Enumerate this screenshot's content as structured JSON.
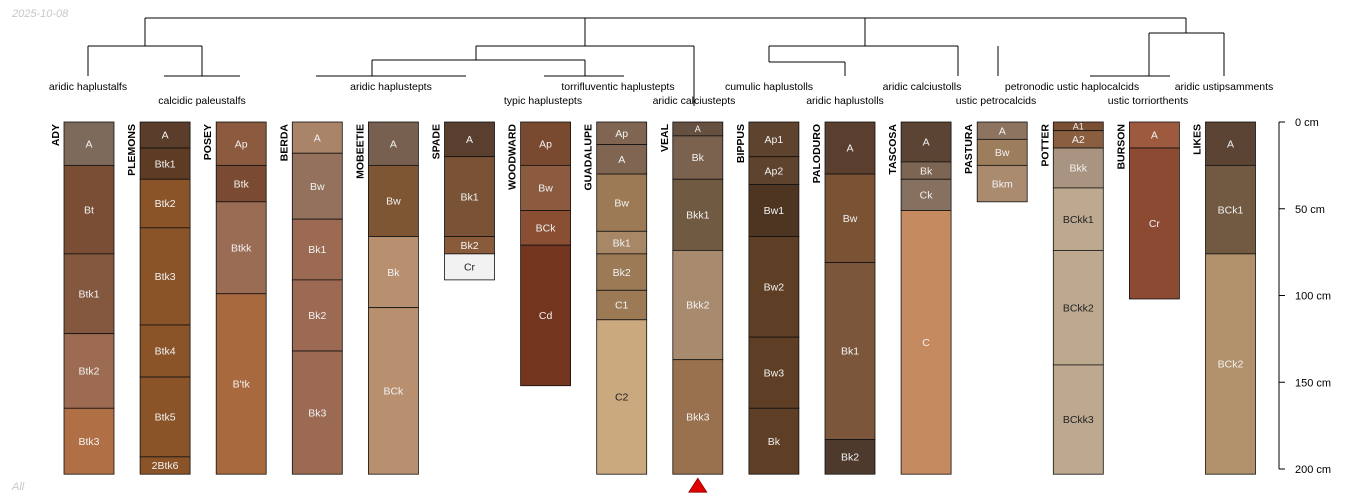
{
  "date_stamp": "2025-10-08",
  "footer_mark": "All",
  "chart_data": {
    "type": "soil-profile-sketch",
    "title": "",
    "depth_unit": "cm",
    "depth_range": [
      0,
      200
    ],
    "depth_ticks": [
      {
        "value": 0,
        "label": "0 cm"
      },
      {
        "value": 50,
        "label": "50 cm"
      },
      {
        "value": 100,
        "label": "100 cm"
      },
      {
        "value": 150,
        "label": "150 cm"
      },
      {
        "value": 200,
        "label": "200 cm"
      }
    ],
    "taxonomic_labels": [
      {
        "text": "aridic haplustalfs"
      },
      {
        "text": "calcidic paleustalfs"
      },
      {
        "text": "aridic haplustepts"
      },
      {
        "text": "torrifluventic haplustepts"
      },
      {
        "text": "typic haplustepts"
      },
      {
        "text": "aridic calciustepts"
      },
      {
        "text": "cumulic haplustolls"
      },
      {
        "text": "aridic haplustolls"
      },
      {
        "text": "aridic calciustolls"
      },
      {
        "text": "ustic petrocalcids"
      },
      {
        "text": "petronodic ustic haplocalcids"
      },
      {
        "text": "ustic torriorthents"
      },
      {
        "text": "aridic ustipsamments"
      }
    ],
    "marker": {
      "profile": "VEAL",
      "shape": "triangle",
      "color": "#e00000"
    },
    "profiles": [
      {
        "name": "ADY",
        "horizons": [
          {
            "name": "A",
            "top": 0,
            "bottom": 25,
            "color": "#7d6a5a"
          },
          {
            "name": "Bt",
            "top": 25,
            "bottom": 76,
            "color": "#7a4e35"
          },
          {
            "name": "Btk1",
            "top": 76,
            "bottom": 122,
            "color": "#84573f"
          },
          {
            "name": "Btk2",
            "top": 122,
            "bottom": 165,
            "color": "#9d6b52"
          },
          {
            "name": "Btk3",
            "top": 165,
            "bottom": 203,
            "color": "#b06f44"
          }
        ]
      },
      {
        "name": "PLEMONS",
        "horizons": [
          {
            "name": "A",
            "top": 0,
            "bottom": 15,
            "color": "#5a3d2b"
          },
          {
            "name": "Btk1",
            "top": 15,
            "bottom": 33,
            "color": "#5e3b23"
          },
          {
            "name": "Btk2",
            "top": 33,
            "bottom": 61,
            "color": "#8a5428"
          },
          {
            "name": "Btk3",
            "top": 61,
            "bottom": 117,
            "color": "#8a5428"
          },
          {
            "name": "Btk4",
            "top": 117,
            "bottom": 147,
            "color": "#8a5428"
          },
          {
            "name": "Btk5",
            "top": 147,
            "bottom": 193,
            "color": "#8a5428"
          },
          {
            "name": "2Btk6",
            "top": 193,
            "bottom": 203,
            "color": "#8a5428"
          }
        ]
      },
      {
        "name": "POSEY",
        "horizons": [
          {
            "name": "Ap",
            "top": 0,
            "bottom": 25,
            "color": "#8c5a3f"
          },
          {
            "name": "Btk",
            "top": 25,
            "bottom": 46,
            "color": "#7a4a33"
          },
          {
            "name": "Btkk",
            "top": 46,
            "bottom": 99,
            "color": "#9b6c54"
          },
          {
            "name": "B'tk",
            "top": 99,
            "bottom": 203,
            "color": "#a9693f"
          }
        ]
      },
      {
        "name": "BERDA",
        "horizons": [
          {
            "name": "A",
            "top": 0,
            "bottom": 18,
            "color": "#a98468"
          },
          {
            "name": "Bw",
            "top": 18,
            "bottom": 56,
            "color": "#93715c"
          },
          {
            "name": "Bk1",
            "top": 56,
            "bottom": 91,
            "color": "#9c6a53"
          },
          {
            "name": "Bk2",
            "top": 91,
            "bottom": 132,
            "color": "#9c6a53"
          },
          {
            "name": "Bk3",
            "top": 132,
            "bottom": 203,
            "color": "#9c6a53"
          }
        ]
      },
      {
        "name": "MOBEETIE",
        "horizons": [
          {
            "name": "A",
            "top": 0,
            "bottom": 25,
            "color": "#77604f"
          },
          {
            "name": "Bw",
            "top": 25,
            "bottom": 66,
            "color": "#7e5634"
          },
          {
            "name": "Bk",
            "top": 66,
            "bottom": 107,
            "color": "#b88f6f"
          },
          {
            "name": "BCk",
            "top": 107,
            "bottom": 203,
            "color": "#b88f6f"
          }
        ]
      },
      {
        "name": "SPADE",
        "horizons": [
          {
            "name": "A",
            "top": 0,
            "bottom": 20,
            "color": "#5b3f2e"
          },
          {
            "name": "Bk1",
            "top": 20,
            "bottom": 66,
            "color": "#7a5336"
          },
          {
            "name": "Bk2",
            "top": 66,
            "bottom": 76,
            "color": "#8a5b3b"
          },
          {
            "name": "Cr",
            "top": 76,
            "bottom": 91,
            "color": "#f2f2f2"
          }
        ]
      },
      {
        "name": "WOODWARD",
        "horizons": [
          {
            "name": "Ap",
            "top": 0,
            "bottom": 25,
            "color": "#7a4a30"
          },
          {
            "name": "Bw",
            "top": 25,
            "bottom": 51,
            "color": "#8c5a3f"
          },
          {
            "name": "BCk",
            "top": 51,
            "bottom": 71,
            "color": "#8a4e33"
          },
          {
            "name": "Cd",
            "top": 71,
            "bottom": 152,
            "color": "#74351f"
          }
        ]
      },
      {
        "name": "GUADALUPE",
        "horizons": [
          {
            "name": "Ap",
            "top": 0,
            "bottom": 13,
            "color": "#806652"
          },
          {
            "name": "A",
            "top": 13,
            "bottom": 30,
            "color": "#806652"
          },
          {
            "name": "Bw",
            "top": 30,
            "bottom": 63,
            "color": "#9c7a55"
          },
          {
            "name": "Bk1",
            "top": 63,
            "bottom": 76,
            "color": "#a78766"
          },
          {
            "name": "Bk2",
            "top": 76,
            "bottom": 97,
            "color": "#9c7a55"
          },
          {
            "name": "C1",
            "top": 97,
            "bottom": 114,
            "color": "#9c7a55"
          },
          {
            "name": "C2",
            "top": 114,
            "bottom": 203,
            "color": "#caa97f"
          }
        ]
      },
      {
        "name": "VEAL",
        "horizons": [
          {
            "name": "A",
            "top": 0,
            "bottom": 8,
            "color": "#66503f"
          },
          {
            "name": "Bk",
            "top": 8,
            "bottom": 33,
            "color": "#7b624f"
          },
          {
            "name": "Bkk1",
            "top": 33,
            "bottom": 74,
            "color": "#715a42"
          },
          {
            "name": "Bkk2",
            "top": 74,
            "bottom": 137,
            "color": "#a88b6f"
          },
          {
            "name": "Bkk3",
            "top": 137,
            "bottom": 203,
            "color": "#9a714f"
          }
        ]
      },
      {
        "name": "BIPPUS",
        "horizons": [
          {
            "name": "Ap1",
            "top": 0,
            "bottom": 20,
            "color": "#5e432e"
          },
          {
            "name": "Ap2",
            "top": 20,
            "bottom": 36,
            "color": "#5e432e"
          },
          {
            "name": "Bw1",
            "top": 36,
            "bottom": 66,
            "color": "#4e3521"
          },
          {
            "name": "Bw2",
            "top": 66,
            "bottom": 124,
            "color": "#5e3e24"
          },
          {
            "name": "Bw3",
            "top": 124,
            "bottom": 165,
            "color": "#5e3e24"
          },
          {
            "name": "Bk",
            "top": 165,
            "bottom": 203,
            "color": "#5e3e24"
          }
        ]
      },
      {
        "name": "PALODURO",
        "horizons": [
          {
            "name": "A",
            "top": 0,
            "bottom": 30,
            "color": "#5b3f2e"
          },
          {
            "name": "Bw",
            "top": 30,
            "bottom": 81,
            "color": "#7a5334"
          },
          {
            "name": "Bk1",
            "top": 81,
            "bottom": 183,
            "color": "#7b563a"
          },
          {
            "name": "Bk2",
            "top": 183,
            "bottom": 203,
            "color": "#4d3a2c"
          }
        ]
      },
      {
        "name": "TASCOSA",
        "horizons": [
          {
            "name": "A",
            "top": 0,
            "bottom": 23,
            "color": "#5b4433"
          },
          {
            "name": "Bk",
            "top": 23,
            "bottom": 33,
            "color": "#7d6553"
          },
          {
            "name": "Ck",
            "top": 33,
            "bottom": 51,
            "color": "#86705f"
          },
          {
            "name": "C",
            "top": 51,
            "bottom": 203,
            "color": "#c68a60"
          }
        ]
      },
      {
        "name": "PASTURA",
        "horizons": [
          {
            "name": "A",
            "top": 0,
            "bottom": 10,
            "color": "#8c7461"
          },
          {
            "name": "Bw",
            "top": 10,
            "bottom": 25,
            "color": "#9c7d5c"
          },
          {
            "name": "Bkm",
            "top": 25,
            "bottom": 46,
            "color": "#ab8b70"
          }
        ]
      },
      {
        "name": "POTTER",
        "horizons": [
          {
            "name": "A1",
            "top": 0,
            "bottom": 5,
            "color": "#7a4f33"
          },
          {
            "name": "A2",
            "top": 5,
            "bottom": 15,
            "color": "#8a5f3f"
          },
          {
            "name": "Bkk",
            "top": 15,
            "bottom": 38,
            "color": "#a89480"
          },
          {
            "name": "BCkk1",
            "top": 38,
            "bottom": 74,
            "color": "#bca990"
          },
          {
            "name": "BCkk2",
            "top": 74,
            "bottom": 140,
            "color": "#bca990"
          },
          {
            "name": "BCkk3",
            "top": 140,
            "bottom": 203,
            "color": "#bca990"
          }
        ]
      },
      {
        "name": "BURSON",
        "horizons": [
          {
            "name": "A",
            "top": 0,
            "bottom": 15,
            "color": "#9e5a3f"
          },
          {
            "name": "Cr",
            "top": 15,
            "bottom": 102,
            "color": "#8c4a33"
          }
        ]
      },
      {
        "name": "LIKES",
        "horizons": [
          {
            "name": "A",
            "top": 0,
            "bottom": 25,
            "color": "#5b4433"
          },
          {
            "name": "BCk1",
            "top": 25,
            "bottom": 76,
            "color": "#725a42"
          },
          {
            "name": "BCk2",
            "top": 76,
            "bottom": 203,
            "color": "#b0916c"
          }
        ]
      }
    ]
  }
}
